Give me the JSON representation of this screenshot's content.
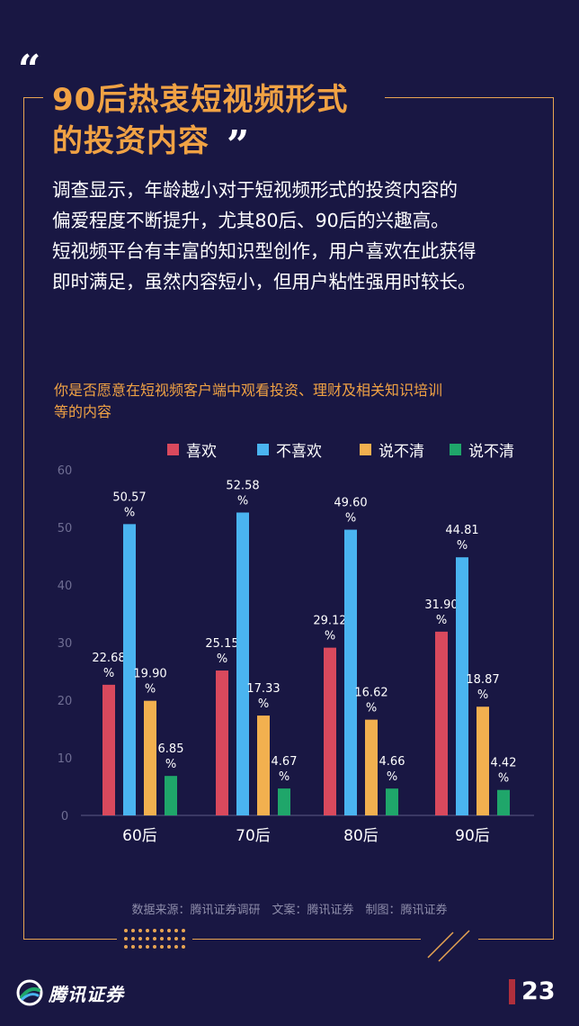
{
  "header": {
    "title_line1": "90后热衷短视频形式",
    "title_line2": "的投资内容",
    "quote_open": "“",
    "quote_close": "”"
  },
  "intro": {
    "line1": "调查显示，年龄越小对于短视频形式的投资内容的",
    "line2": "偏爱程度不断提升，尤其80后、90后的兴趣高。",
    "line3": "短视频平台有丰富的知识型创作，用户喜欢在此获得",
    "line4": "即时满足，虽然内容短小，但用户粘性强用时较长。"
  },
  "chart_data": {
    "type": "bar",
    "title_line1": "你是否愿意在短视频客户端中观看投资、理财及相关知识培训",
    "title_line2": "等的内容",
    "categories": [
      "60后",
      "70后",
      "80后",
      "90后"
    ],
    "ylim": [
      0,
      60
    ],
    "yticks": [
      0,
      10,
      20,
      30,
      40,
      50,
      60
    ],
    "grid": false,
    "legend_position": "top-right",
    "series": [
      {
        "name": "喜欢",
        "color": "#d9495d",
        "values": [
          22.68,
          25.15,
          29.12,
          31.9
        ],
        "labels": [
          "22.68",
          "25.15",
          "29.12",
          "31.90"
        ]
      },
      {
        "name": "不喜欢",
        "color": "#4ab4f0",
        "values": [
          50.57,
          52.58,
          49.6,
          44.81
        ],
        "labels": [
          "50.57",
          "52.58",
          "49.60",
          "44.81"
        ]
      },
      {
        "name": "说不清",
        "color": "#f2b04f",
        "values": [
          19.9,
          17.33,
          16.62,
          18.87
        ],
        "labels": [
          "19.90",
          "17.33",
          "16.62",
          "18.87"
        ]
      },
      {
        "name": "说不清",
        "color": "#1fa66a",
        "values": [
          6.85,
          4.67,
          4.66,
          4.42
        ],
        "labels": [
          "6.85",
          "4.67",
          "4.66",
          "4.42"
        ]
      }
    ],
    "value_unit": "%"
  },
  "footer": {
    "source": "数据来源：腾讯证券调研　文案：腾讯证券　制图：腾讯证券",
    "brand_name": "腾讯证券",
    "page_number": "23"
  },
  "colors": {
    "background": "#191743",
    "accent": "#f0a244",
    "frame": "#e8a552"
  }
}
